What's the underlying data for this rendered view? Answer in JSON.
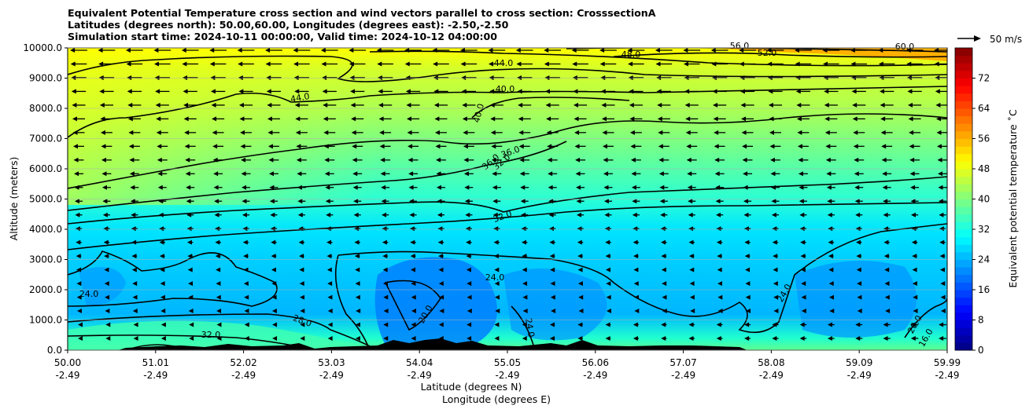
{
  "chart_data": {
    "type": "contour",
    "title_lines": [
      "Equivalent Potential Temperature cross section and wind vectors parallel to cross section: CrosssectionA",
      "Latitudes (degrees north): 50.00,60.00, Longitudes (degrees east): -2.50,-2.50",
      "Simulation start time: 2024-10-11 00:00:00, Valid time: 2024-10-12 04:00:00"
    ],
    "ylabel": "Altitude (meters)",
    "xlabel_lat": "Latitude (degrees N)",
    "xlabel_lon": "Longitude (degrees E)",
    "ylim": [
      0,
      10000
    ],
    "yticks": [
      "0.0",
      "1000.0",
      "2000.0",
      "3000.0",
      "4000.0",
      "5000.0",
      "6000.0",
      "7000.0",
      "8000.0",
      "9000.0",
      "10000.0"
    ],
    "xticks_lat": [
      "50.00",
      "51.01",
      "52.02",
      "53.03",
      "54.04",
      "55.05",
      "56.06",
      "57.07",
      "58.08",
      "59.09",
      "59.99"
    ],
    "xticks_lon": [
      "-2.49",
      "-2.49",
      "-2.49",
      "-2.49",
      "-2.49",
      "-2.49",
      "-2.49",
      "-2.49",
      "-2.49",
      "-2.49",
      "-2.49"
    ],
    "grid": "horizontal",
    "colorbar": {
      "label": "Equivalent potential temperature ˚C",
      "range": [
        0,
        80
      ],
      "ticks": [
        "0",
        "8",
        "16",
        "24",
        "32",
        "40",
        "48",
        "56",
        "64",
        "72"
      ],
      "colormap": "jet"
    },
    "quiver_key": "50 m/s",
    "contour_labels": [
      "24.0",
      "24.0",
      "24.0",
      "24.0",
      "20.0",
      "20.0",
      "16.0",
      "28.0",
      "32.0",
      "32.0",
      "32.0",
      "36.0",
      "36.0",
      "40.0",
      "40.0",
      "44.0",
      "44.0",
      "48.0",
      "52.0",
      "56.0",
      "60.0"
    ],
    "colors": {
      "terrain": "#000000",
      "contour": "#000000",
      "grid": "#b0b0b0"
    }
  }
}
